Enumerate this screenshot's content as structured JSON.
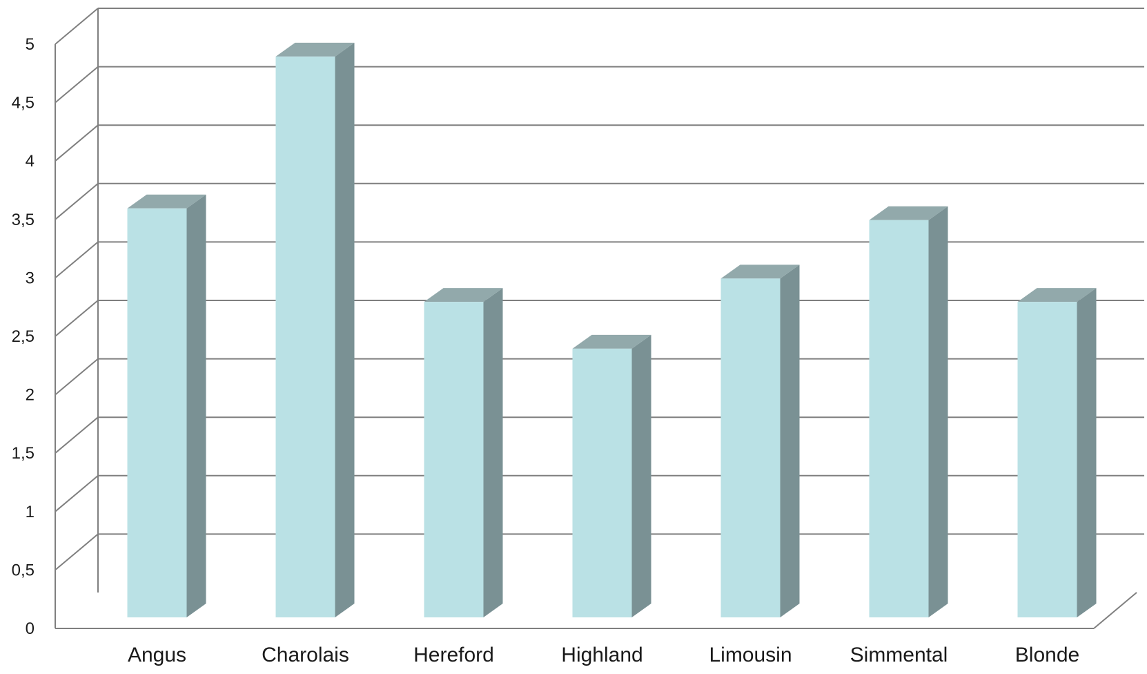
{
  "chart_data": {
    "type": "bar",
    "title": "",
    "xlabel": "",
    "ylabel": "",
    "categories": [
      "Angus",
      "Charolais",
      "Hereford",
      "Highland",
      "Limousin",
      "Simmental",
      "Blonde"
    ],
    "values": [
      3.5,
      4.8,
      2.7,
      2.3,
      2.9,
      3.4,
      2.7
    ],
    "ylim": [
      0,
      5
    ],
    "yticks": [
      "0",
      "0,5",
      "1",
      "1,5",
      "2",
      "2,5",
      "3",
      "3,5",
      "4",
      "4,5",
      "5"
    ],
    "grid": true,
    "three_d": true,
    "colors": {
      "bar_front": "#bae1e5",
      "bar_side": "#7a9194",
      "bar_top": "#92a9ab",
      "grid": "#7f7f7f"
    }
  }
}
